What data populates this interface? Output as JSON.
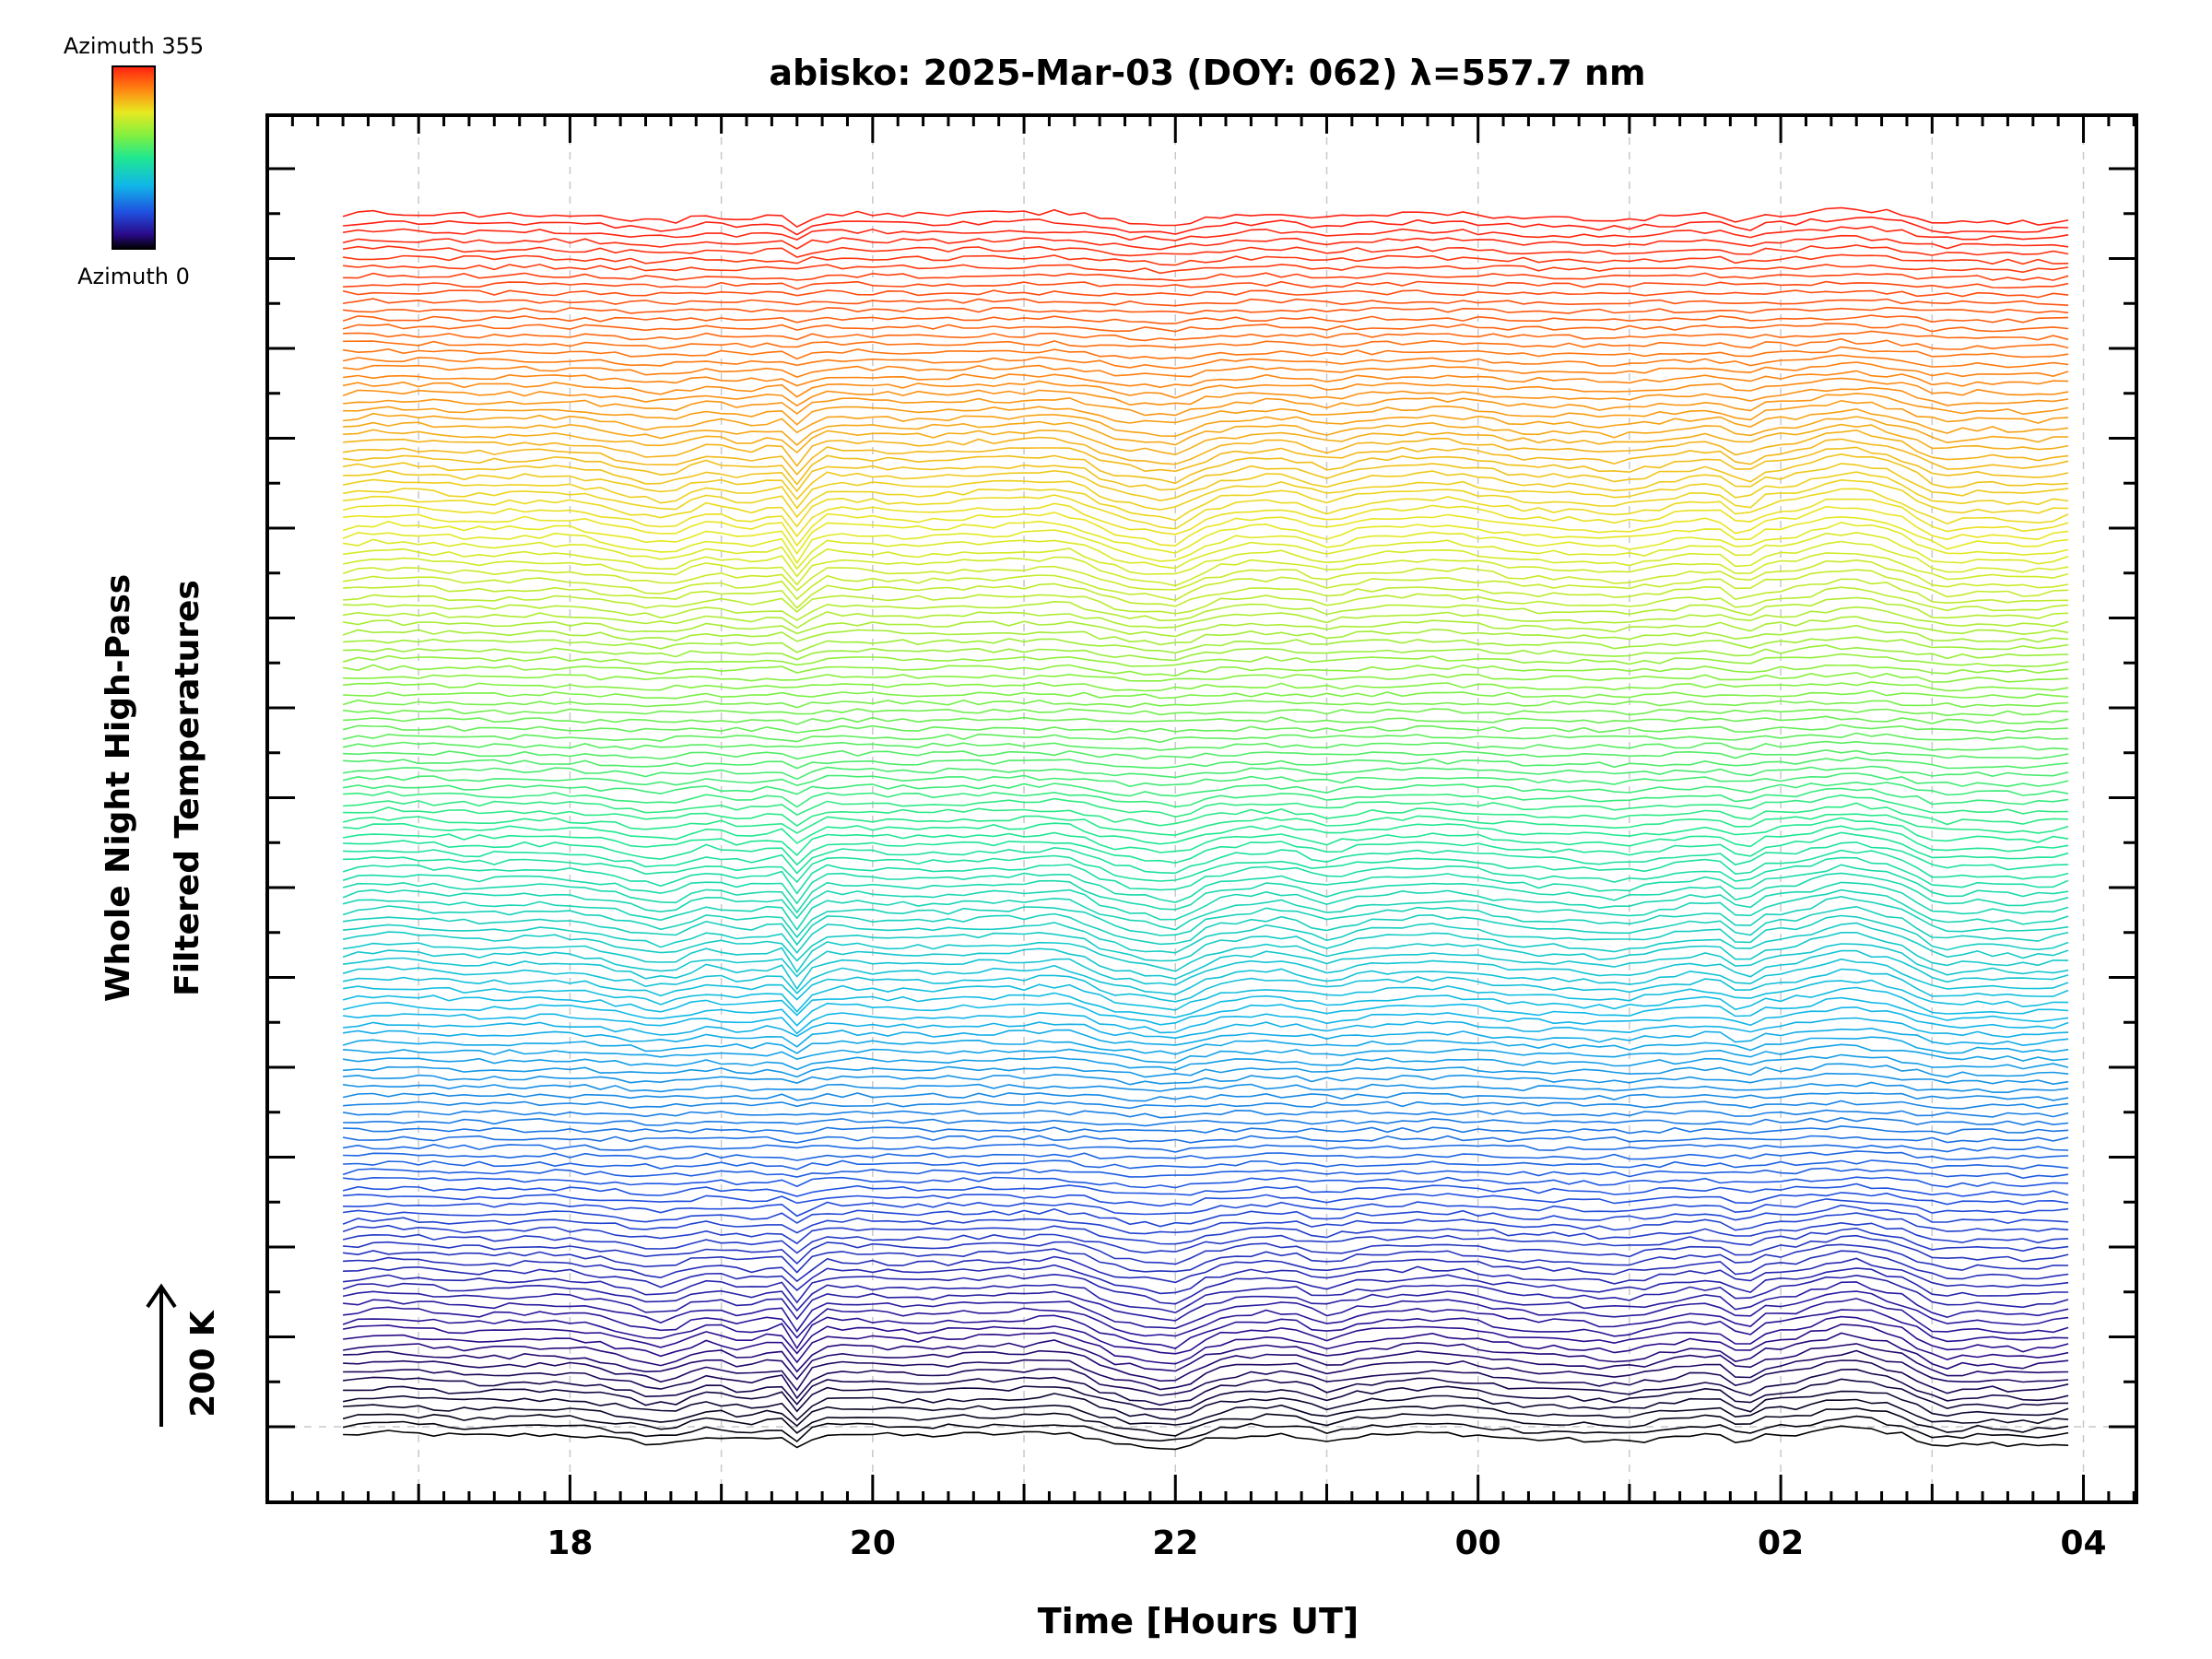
{
  "chart_data": {
    "type": "line",
    "title": "abisko: 2025-Mar-03 (DOY: 062) λ=557.7 nm",
    "xlabel": "Time [Hours UT]",
    "ylabel_line1": "Whole Night High-Pass",
    "ylabel_line2": "Filtered Temperatures",
    "scale_label": "200 K",
    "colorbar": {
      "top_label": "Azimuth 355",
      "bottom_label": "Azimuth 0",
      "min": 0,
      "max": 355,
      "colormap": "rainbow"
    },
    "x_tick_labels": [
      "18",
      "20",
      "22",
      "00",
      "02",
      "04"
    ],
    "x_tick_hours": [
      18,
      20,
      22,
      24,
      26,
      28
    ],
    "xlim_hours": [
      16.0,
      28.35
    ],
    "data_x_range_hours": [
      16.5,
      27.9
    ],
    "grid": true,
    "series_count": 144,
    "azimuth_step_deg": 2.5,
    "stacked_groups": 6,
    "scale_kelvin": 200,
    "dip_event_hours": [
      19.5,
      22.0,
      25.0,
      26.0,
      27.0
    ]
  }
}
